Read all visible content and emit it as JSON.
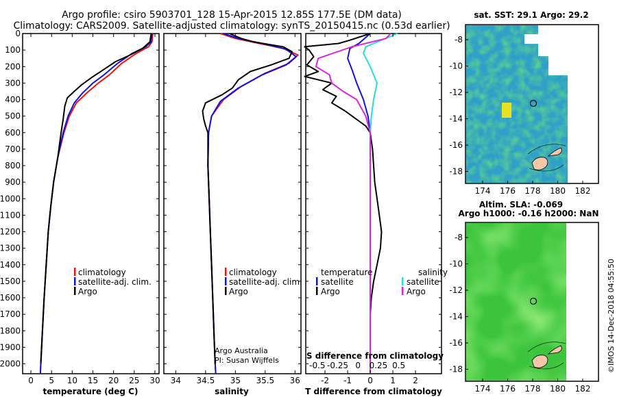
{
  "title": {
    "line1": "Argo profile: csiro 5903701_128 15-Apr-2015 12.85S 177.5E (DM data)",
    "line2": "Climatology: CARS2009. Satellite-adjusted climatology: synTS_20150415.nc (0.53d earlier)"
  },
  "colors": {
    "climatology": "#ee1111",
    "satellite": "#1111dd",
    "argo": "#000000",
    "satellite_s": "#22dddd",
    "argo_s": "#dd22dd"
  },
  "depth_ticks": [
    0,
    100,
    200,
    300,
    400,
    500,
    600,
    700,
    800,
    900,
    1000,
    1100,
    1200,
    1300,
    1400,
    1500,
    1600,
    1700,
    1800,
    1900,
    2000
  ],
  "credit": {
    "line1": "Argo Australia",
    "line2": "PI: Susan Wijffels"
  },
  "watermark": "©IMOS 14-Dec-2018 04:55:50",
  "legend_main": [
    {
      "key": "climatology",
      "label": "climatology"
    },
    {
      "key": "satellite",
      "label": "satellite-adj. clim."
    },
    {
      "key": "argo",
      "label": "Argo"
    }
  ],
  "legend_diff": {
    "temp_header": "temperature",
    "sal_header": "salinity",
    "satellite": "satellite",
    "argo": "Argo"
  },
  "maps": {
    "sst_title": "sat. SST: 29.1 Argo: 29.2",
    "sla_title1": "Altim. SLA: -0.069",
    "sla_title2": "Argo h1000: -0.16 h2000: NaN",
    "lon_ticks": [
      "174",
      "176",
      "178",
      "180",
      "182"
    ],
    "lat_ticks": [
      "-8",
      "-10",
      "-12",
      "-14",
      "-16",
      "-18"
    ]
  },
  "chart_data": [
    {
      "type": "line",
      "xlabel": "temperature (deg C)",
      "ylabel": "",
      "xlim": [
        -2,
        31
      ],
      "ylim": [
        2060,
        0
      ],
      "x_ticks": [
        0,
        5,
        10,
        15,
        20,
        25,
        30
      ],
      "series": [
        {
          "name": "climatology",
          "points": [
            [
              29.5,
              0
            ],
            [
              29.3,
              50
            ],
            [
              28.5,
              80
            ],
            [
              25.5,
              120
            ],
            [
              22,
              180
            ],
            [
              19,
              250
            ],
            [
              16.3,
              300
            ],
            [
              13.5,
              360
            ],
            [
              11,
              420
            ],
            [
              9.3,
              500
            ],
            [
              8,
              600
            ],
            [
              6.5,
              750
            ],
            [
              5.5,
              900
            ],
            [
              4.8,
              1050
            ],
            [
              4.2,
              1200
            ],
            [
              3.7,
              1400
            ],
            [
              3.2,
              1600
            ],
            [
              2.8,
              1800
            ],
            [
              2.4,
              2000
            ],
            [
              2.3,
              2060
            ]
          ]
        },
        {
          "name": "satellite-adj. clim.",
          "points": [
            [
              29.3,
              0
            ],
            [
              29.1,
              50
            ],
            [
              27.8,
              80
            ],
            [
              24.5,
              120
            ],
            [
              21,
              180
            ],
            [
              17.7,
              250
            ],
            [
              15,
              300
            ],
            [
              12.5,
              360
            ],
            [
              10.5,
              420
            ],
            [
              9,
              500
            ],
            [
              7.8,
              600
            ],
            [
              6.5,
              750
            ],
            [
              5.5,
              900
            ],
            [
              4.8,
              1050
            ],
            [
              4.2,
              1200
            ],
            [
              3.7,
              1400
            ],
            [
              3.2,
              1600
            ],
            [
              2.8,
              1800
            ],
            [
              2.4,
              2000
            ],
            [
              2.3,
              2060
            ]
          ]
        },
        {
          "name": "Argo",
          "points": [
            [
              29.1,
              0
            ],
            [
              28.8,
              50
            ],
            [
              27,
              90
            ],
            [
              24,
              130
            ],
            [
              20.5,
              170
            ],
            [
              17.5,
              220
            ],
            [
              14.5,
              270
            ],
            [
              12.3,
              310
            ],
            [
              10.5,
              350
            ],
            [
              8.8,
              390
            ],
            [
              8.2,
              440
            ],
            [
              7.8,
              520
            ],
            [
              7.3,
              600
            ],
            [
              6.5,
              750
            ],
            [
              5.5,
              900
            ],
            [
              4.8,
              1050
            ],
            [
              4.2,
              1200
            ],
            [
              3.7,
              1400
            ],
            [
              3.2,
              1600
            ],
            [
              2.8,
              1800
            ],
            [
              2.4,
              2000
            ]
          ]
        }
      ]
    },
    {
      "type": "line",
      "xlabel": "salinity",
      "ylabel": "",
      "xlim": [
        33.8,
        36.1
      ],
      "ylim": [
        2060,
        0
      ],
      "x_ticks": [
        34,
        34.5,
        35,
        35.5,
        36
      ],
      "series": [
        {
          "name": "climatology",
          "points": [
            [
              34.75,
              0
            ],
            [
              35,
              30
            ],
            [
              35.4,
              60
            ],
            [
              35.8,
              90
            ],
            [
              36.05,
              130
            ],
            [
              35.9,
              180
            ],
            [
              35.5,
              240
            ],
            [
              35.1,
              320
            ],
            [
              34.8,
              400
            ],
            [
              34.6,
              500
            ],
            [
              34.55,
              600
            ],
            [
              34.54,
              800
            ],
            [
              34.56,
              1000
            ],
            [
              34.58,
              1200
            ],
            [
              34.6,
              1400
            ],
            [
              34.62,
              1600
            ],
            [
              34.64,
              1800
            ],
            [
              34.66,
              2000
            ],
            [
              34.67,
              2060
            ]
          ]
        },
        {
          "name": "satellite-adj. clim.",
          "points": [
            [
              34.8,
              0
            ],
            [
              35.05,
              30
            ],
            [
              35.45,
              60
            ],
            [
              35.85,
              95
            ],
            [
              36.02,
              140
            ],
            [
              35.85,
              190
            ],
            [
              35.45,
              250
            ],
            [
              35.05,
              330
            ],
            [
              34.75,
              410
            ],
            [
              34.6,
              500
            ],
            [
              34.55,
              600
            ],
            [
              34.54,
              800
            ],
            [
              34.56,
              1000
            ],
            [
              34.58,
              1200
            ],
            [
              34.6,
              1400
            ],
            [
              34.62,
              1600
            ],
            [
              34.64,
              1800
            ],
            [
              34.66,
              2000
            ],
            [
              34.67,
              2060
            ]
          ]
        },
        {
          "name": "Argo",
          "points": [
            [
              34.9,
              0
            ],
            [
              35.1,
              30
            ],
            [
              35.3,
              50
            ],
            [
              35.8,
              80
            ],
            [
              35.95,
              110
            ],
            [
              35.9,
              150
            ],
            [
              35.6,
              190
            ],
            [
              35.25,
              230
            ],
            [
              35.05,
              280
            ],
            [
              34.95,
              330
            ],
            [
              34.78,
              370
            ],
            [
              34.5,
              420
            ],
            [
              34.45,
              470
            ],
            [
              34.47,
              520
            ],
            [
              34.5,
              560
            ],
            [
              34.54,
              600
            ],
            [
              34.54,
              800
            ],
            [
              34.56,
              1000
            ],
            [
              34.58,
              1200
            ],
            [
              34.6,
              1400
            ],
            [
              34.62,
              1600
            ],
            [
              34.64,
              1800
            ],
            [
              34.66,
              2000
            ]
          ]
        }
      ]
    },
    {
      "type": "line",
      "xlabel": "T difference from climatology",
      "ylabel": "",
      "xlim": [
        -2.85,
        3.15
      ],
      "ylim": [
        2060,
        0
      ],
      "x_ticks": [
        -2,
        -1,
        0,
        1,
        2
      ],
      "secondary_axis": {
        "label": "S difference from climatology",
        "ticks": [
          "-0.5",
          "-0.25",
          "0",
          "0.25",
          "0.5"
        ]
      },
      "series": [
        {
          "name": "temperature satellite",
          "points": [
            [
              0,
              0
            ],
            [
              -0.5,
              60
            ],
            [
              -0.9,
              90
            ],
            [
              -1,
              150
            ],
            [
              -0.8,
              220
            ],
            [
              -0.6,
              300
            ],
            [
              -0.3,
              400
            ],
            [
              -0.1,
              500
            ],
            [
              0,
              600
            ],
            [
              0,
              800
            ],
            [
              0,
              1200
            ],
            [
              0,
              2000
            ],
            [
              0,
              2060
            ]
          ]
        },
        {
          "name": "temperature Argo",
          "points": [
            [
              0,
              0
            ],
            [
              -0.9,
              40
            ],
            [
              -1.4,
              60
            ],
            [
              -2.9,
              80
            ],
            [
              -2.7,
              100
            ],
            [
              -2.5,
              140
            ],
            [
              -2.8,
              190
            ],
            [
              -2.3,
              230
            ],
            [
              -2.9,
              260
            ],
            [
              -1.7,
              300
            ],
            [
              -2.1,
              340
            ],
            [
              -1.5,
              380
            ],
            [
              -1.7,
              420
            ],
            [
              -1.1,
              470
            ],
            [
              -0.6,
              520
            ],
            [
              -0.2,
              560
            ],
            [
              0,
              600
            ],
            [
              0.1,
              700
            ],
            [
              0.15,
              800
            ],
            [
              0.2,
              900
            ],
            [
              0.3,
              1000
            ],
            [
              0.4,
              1100
            ],
            [
              0.5,
              1200
            ],
            [
              0.45,
              1300
            ],
            [
              0.3,
              1400
            ],
            [
              0.15,
              1500
            ],
            [
              0.05,
              1600
            ],
            [
              0,
              1700
            ],
            [
              0,
              1800
            ],
            [
              0,
              2000
            ]
          ]
        },
        {
          "name": "salinity satellite",
          "points": [
            [
              1.2,
              0
            ],
            [
              0.5,
              40
            ],
            [
              -0.2,
              80
            ],
            [
              -0.3,
              120
            ],
            [
              0,
              200
            ],
            [
              0.3,
              300
            ],
            [
              0.15,
              400
            ],
            [
              0.05,
              500
            ],
            [
              0,
              600
            ],
            [
              0,
              2060
            ]
          ]
        },
        {
          "name": "salinity Argo",
          "points": [
            [
              0.9,
              0
            ],
            [
              0.7,
              30
            ],
            [
              -0.8,
              80
            ],
            [
              -2.3,
              150
            ],
            [
              -2.4,
              200
            ],
            [
              -1.8,
              250
            ],
            [
              -1.7,
              300
            ],
            [
              -1.2,
              350
            ],
            [
              -0.6,
              400
            ],
            [
              -0.2,
              500
            ],
            [
              0,
              600
            ],
            [
              0,
              2060
            ]
          ]
        }
      ]
    }
  ]
}
